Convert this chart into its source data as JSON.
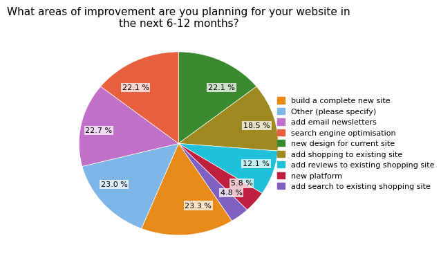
{
  "title": "What areas of improvement are you planning for your website in\nthe next 6-12 months?",
  "slices": [
    {
      "label": "new design for\ncurrent site",
      "pct": "22.1 %",
      "value": 22.1,
      "color": "#3A8A30"
    },
    {
      "label": "add shopping to\nexisting site",
      "pct": "18.5 %",
      "value": 18.5,
      "color": "#9E8A20"
    },
    {
      "label": "add reviews to\nexisting shopping site",
      "pct": "12.1 %",
      "value": 12.1,
      "color": "#20C0D8"
    },
    {
      "label": "new platform",
      "pct": "5.8 %",
      "value": 5.8,
      "color": "#C02040"
    },
    {
      "label": "add search to existing\nshopping site",
      "pct": "4.8 %",
      "value": 4.8,
      "color": "#8060C0"
    },
    {
      "label": "build a complete\nnew site",
      "pct": "23.3 %",
      "value": 23.3,
      "color": "#E88A18"
    },
    {
      "label": "Other (please specify)",
      "pct": "23.0 %",
      "value": 23.0,
      "color": "#7EB6E8"
    },
    {
      "label": "add email newsletters",
      "pct": "22.7 %",
      "value": 22.7,
      "color": "#C070C8"
    },
    {
      "label": "search engine\noptimisation",
      "pct": "22.1 %",
      "value": 22.1,
      "color": "#E86040"
    }
  ],
  "legend_order": [
    5,
    6,
    7,
    8,
    0,
    1,
    2,
    3,
    4
  ],
  "startangle": 90,
  "title_fontsize": 11,
  "label_fontsize": 8,
  "legend_fontsize": 8,
  "background_color": "#ffffff"
}
